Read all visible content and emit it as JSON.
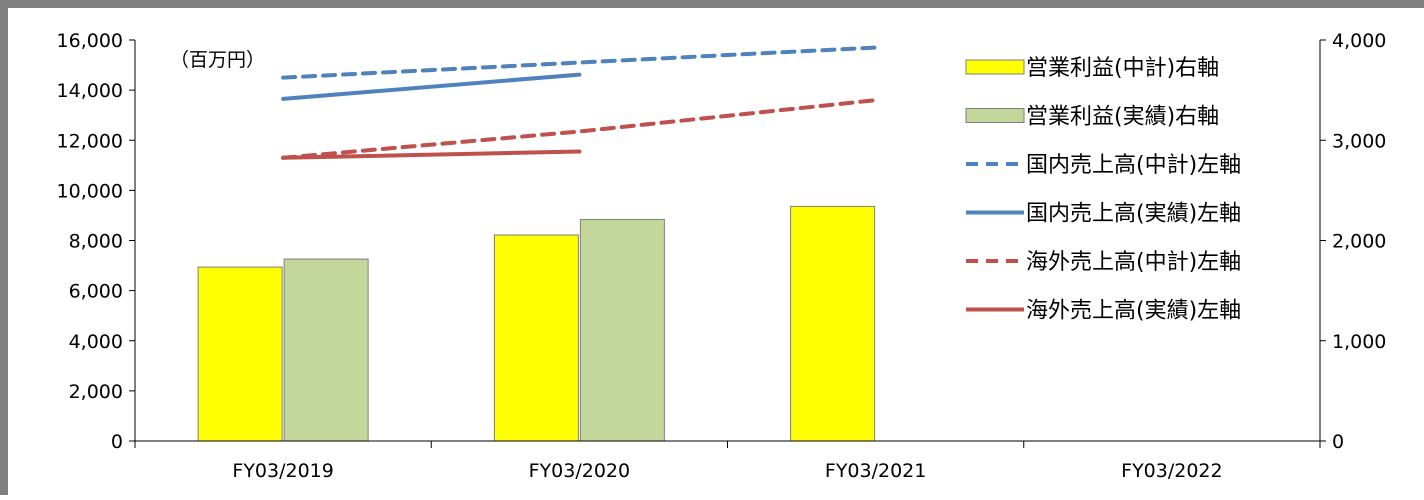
{
  "chart_data": {
    "type": "bar",
    "categories": [
      "FY03/2019",
      "FY03/2020",
      "FY03/2021",
      "FY03/2022"
    ],
    "unit_label": "（百万円）",
    "left_axis": {
      "min": 0,
      "max": 16000,
      "step": 2000,
      "ticks": [
        "0",
        "2,000",
        "4,000",
        "6,000",
        "8,000",
        "10,000",
        "12,000",
        "14,000",
        "16,000"
      ]
    },
    "right_axis": {
      "min": 0,
      "max": 4000,
      "step": 1000,
      "ticks": [
        "0",
        "1,000",
        "2,000",
        "3,000",
        "4,000"
      ]
    },
    "bar_series": [
      {
        "name": "営業利益(中計)右軸",
        "color": "#FFFF00",
        "axis": "right",
        "values": [
          1735,
          2055,
          2340,
          null
        ]
      },
      {
        "name": "営業利益(実績)右軸",
        "color": "#C4D79B",
        "axis": "right",
        "values": [
          1815,
          2210,
          null,
          null
        ]
      }
    ],
    "line_series": [
      {
        "name": "国内売上高(中計)左軸",
        "color": "#4F81BD",
        "dashed": true,
        "axis": "left",
        "values": [
          14500,
          15100,
          15700,
          null
        ]
      },
      {
        "name": "国内売上高(実績)左軸",
        "color": "#4F81BD",
        "dashed": false,
        "axis": "left",
        "values": [
          13650,
          14620,
          null,
          null
        ]
      },
      {
        "name": "海外売上高(中計)左軸",
        "color": "#C0504D",
        "dashed": true,
        "axis": "left",
        "values": [
          11300,
          12350,
          13600,
          null
        ]
      },
      {
        "name": "海外売上高(実績)左軸",
        "color": "#C0504D",
        "dashed": false,
        "axis": "left",
        "values": [
          11300,
          11550,
          null,
          null
        ]
      }
    ],
    "legend_position": "top-right",
    "grid": false
  }
}
